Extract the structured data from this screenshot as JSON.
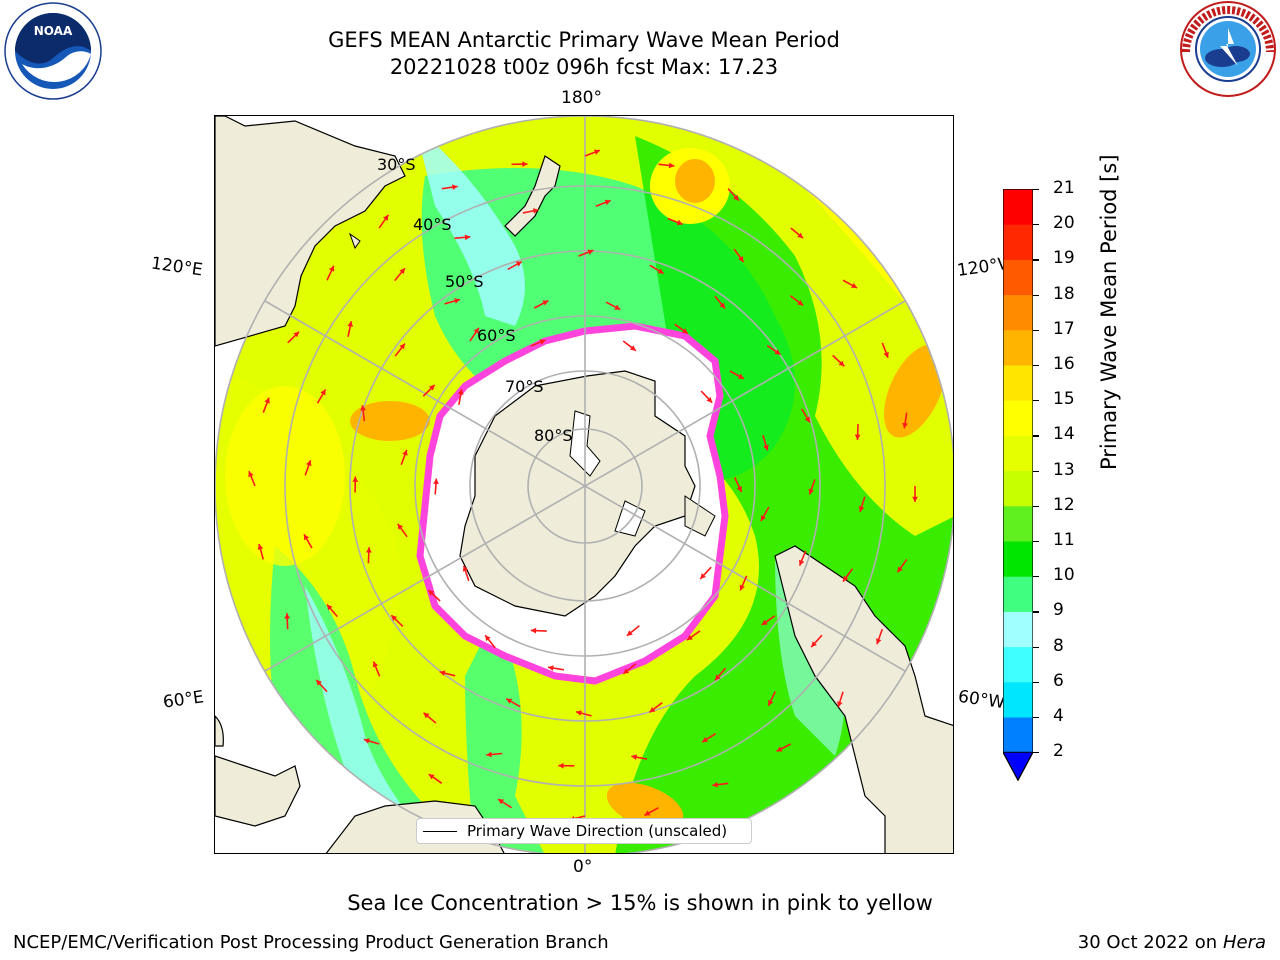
{
  "header": {
    "title_line1": "GEFS MEAN Antarctic Primary Wave Mean Period",
    "title_line2": "20221028 t00z 096h fcst   Max: 17.23"
  },
  "logos": {
    "noaa": {
      "text": "NOAA",
      "ring_text": "NATIONAL OCEANIC AND ATMOSPHERIC ADMINISTRATION • U.S. DEPARTMENT OF COMMERCE"
    },
    "nws": {
      "ring_text": "NATIONAL WEATHER SERVICE"
    }
  },
  "map": {
    "longitude_labels": {
      "top": "180°",
      "bottom": "0°",
      "left_upper": "120°E",
      "left_lower": "60°E",
      "right_upper": "120°W",
      "right_lower": "60°W"
    },
    "latitude_labels": [
      "30°S",
      "40°S",
      "50°S",
      "60°S",
      "70°S",
      "80°S"
    ],
    "legend_label": "Primary Wave Direction (unscaled)",
    "colors": {
      "land": "#efedd9",
      "ice": "#ffffff",
      "ice_edge": "#ff44dd",
      "arrow": "#ff1a1a",
      "grid": "#b0b0b0"
    }
  },
  "colorbar": {
    "label": "Primary Wave Mean Period [s]",
    "ticks": [
      "2",
      "4",
      "6",
      "8",
      "9",
      "10",
      "11",
      "12",
      "13",
      "14",
      "15",
      "16",
      "17",
      "18",
      "19",
      "20",
      "21"
    ],
    "colors": [
      "#0080ff",
      "#00e6ff",
      "#40ffff",
      "#a0ffff",
      "#40ff80",
      "#00e600",
      "#60f020",
      "#c8ff00",
      "#e6ff00",
      "#ffff00",
      "#ffe600",
      "#ffb400",
      "#ff8c00",
      "#ff5a00",
      "#ff2800",
      "#ff0000"
    ],
    "under_color": "#0000ff"
  },
  "notes": {
    "sea_ice": "Sea Ice Concentration > 15% is shown in pink to yellow"
  },
  "footer": {
    "org": "NCEP/EMC/Verification Post Processing Product Generation Branch",
    "date": "30 Oct 2022 on",
    "machine": "Hera"
  }
}
